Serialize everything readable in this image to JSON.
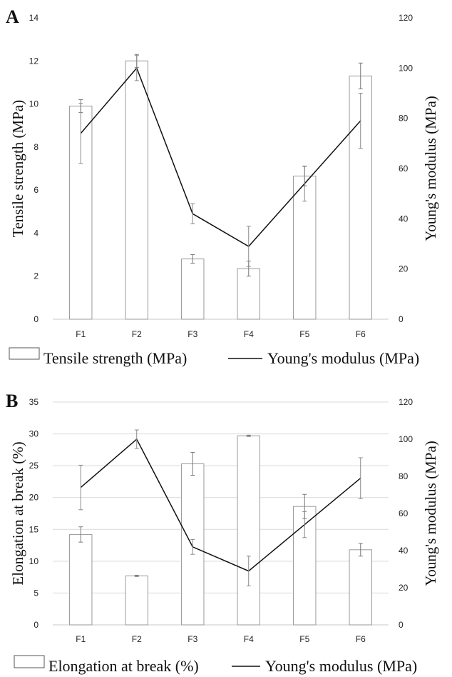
{
  "chart_data": [
    {
      "panel": "A",
      "type": "bar",
      "categories": [
        "F1",
        "F2",
        "F3",
        "F4",
        "F5",
        "F6"
      ],
      "series": [
        {
          "name": "Tensile strength (MPa)",
          "type": "bar",
          "axis": "left",
          "values": [
            9.9,
            12.0,
            2.8,
            2.35,
            6.65,
            11.3
          ],
          "errors": [
            0.3,
            0.3,
            0.2,
            0.35,
            0.45,
            0.6
          ]
        },
        {
          "name": "Young's modulus (MPa)",
          "type": "line",
          "axis": "right",
          "values": [
            74,
            100,
            42,
            29,
            54,
            79
          ],
          "errors": [
            12,
            5,
            4,
            8,
            7,
            11
          ]
        }
      ],
      "ylabel": "Tensile strength (MPa)",
      "y2label": "Young's modulus (MPa)",
      "ylim": [
        0,
        14
      ],
      "yticks": [
        0,
        2,
        4,
        6,
        8,
        10,
        12,
        14
      ],
      "y2lim": [
        0,
        120
      ],
      "y2ticks": [
        0,
        20,
        40,
        60,
        80,
        100,
        120
      ],
      "grid": false,
      "legend": "bottom"
    },
    {
      "panel": "B",
      "type": "bar",
      "categories": [
        "F1",
        "F2",
        "F3",
        "F4",
        "F5",
        "F6"
      ],
      "series": [
        {
          "name": "Elongation at break (%)",
          "type": "bar",
          "axis": "left",
          "values": [
            14.2,
            7.7,
            25.3,
            29.7,
            18.6,
            11.8
          ],
          "errors": [
            1.2,
            0.1,
            1.8,
            0.1,
            1.9,
            1.0
          ]
        },
        {
          "name": "Young's modulus (MPa)",
          "type": "line",
          "axis": "right",
          "values": [
            74,
            100,
            42,
            29,
            54,
            79
          ],
          "errors": [
            12,
            5,
            4,
            8,
            7,
            11
          ]
        }
      ],
      "ylabel": "Elongation at break (%)",
      "y2label": "Young's modulus (MPa)",
      "ylim": [
        0,
        35
      ],
      "yticks": [
        0,
        5,
        10,
        15,
        20,
        25,
        30,
        35
      ],
      "y2lim": [
        0,
        120
      ],
      "y2ticks": [
        0,
        20,
        40,
        60,
        80,
        100,
        120
      ],
      "grid": true,
      "legend": "bottom"
    }
  ]
}
